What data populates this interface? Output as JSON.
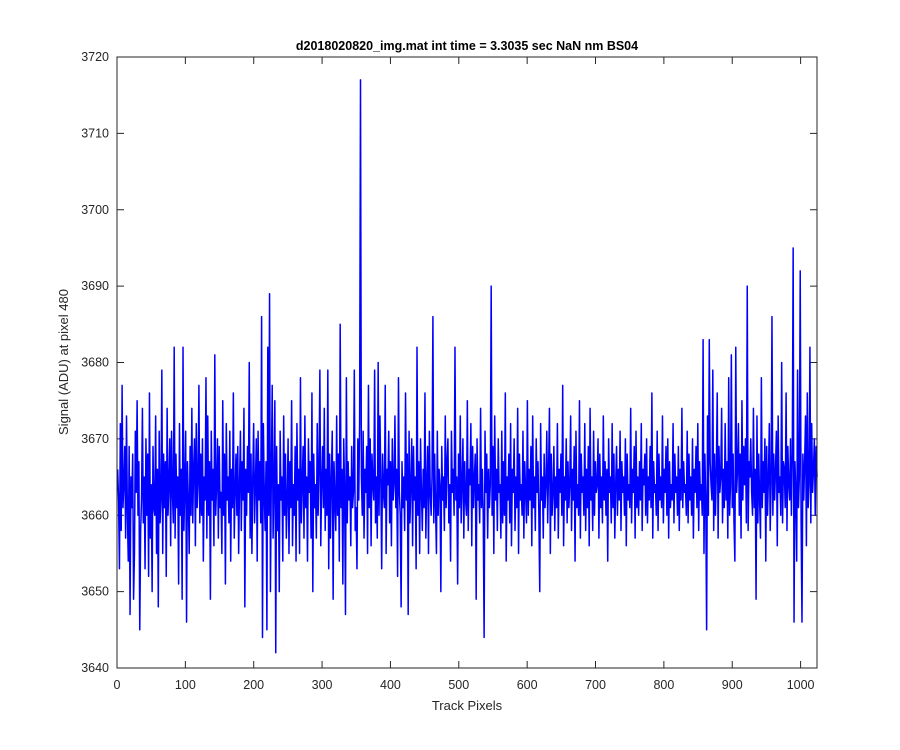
{
  "chart_data": {
    "type": "line",
    "title": "d2018020820_img.mat int time = 3.3035 sec  NaN nm BS04",
    "xlabel": "Track Pixels",
    "ylabel": "Signal (ADU) at pixel 480",
    "xlim": [
      0,
      1024
    ],
    "ylim": [
      3640,
      3720
    ],
    "xticks": [
      0,
      100,
      200,
      300,
      400,
      500,
      600,
      700,
      800,
      900,
      1000
    ],
    "yticks": [
      3640,
      3650,
      3660,
      3670,
      3680,
      3690,
      3700,
      3710,
      3720
    ],
    "grid": false,
    "line_color": "#0000ff",
    "series": [
      {
        "x_start": 1,
        "x_step": 1,
        "values": [
          3666,
          3662,
          3653,
          3672,
          3658,
          3677,
          3661,
          3664,
          3669,
          3657,
          3673,
          3660,
          3654,
          3669,
          3647,
          3665,
          3661,
          3668,
          3649,
          3655,
          3671,
          3663,
          3675,
          3660,
          3667,
          3645,
          3658,
          3662,
          3674,
          3659,
          3665,
          3653,
          3670,
          3660,
          3668,
          3652,
          3676,
          3657,
          3664,
          3650,
          3669,
          3661,
          3660,
          3673,
          3655,
          3666,
          3648,
          3671,
          3659,
          3662,
          3679,
          3655,
          3668,
          3661,
          3667,
          3652,
          3674,
          3660,
          3664,
          3670,
          3656,
          3671,
          3663,
          3659,
          3682,
          3657,
          3668,
          3661,
          3665,
          3651,
          3672,
          3660,
          3666,
          3649,
          3682,
          3658,
          3664,
          3671,
          3646,
          3667,
          3662,
          3655,
          3669,
          3660,
          3674,
          3659,
          3666,
          3670,
          3656,
          3672,
          3661,
          3664,
          3677,
          3659,
          3668,
          3660,
          3670,
          3654,
          3665,
          3662,
          3678,
          3657,
          3673,
          3660,
          3667,
          3649,
          3671,
          3662,
          3666,
          3656,
          3681,
          3660,
          3664,
          3670,
          3657,
          3669,
          3661,
          3663,
          3655,
          3675,
          3660,
          3668,
          3651,
          3672,
          3662,
          3665,
          3659,
          3671,
          3654,
          3666,
          3661,
          3676,
          3657,
          3663,
          3668,
          3660,
          3669,
          3655,
          3664,
          3671,
          3658,
          3667,
          3662,
          3674,
          3648,
          3666,
          3660,
          3669,
          3663,
          3680,
          3657,
          3668,
          3655,
          3665,
          3672,
          3659,
          3664,
          3670,
          3654,
          3671,
          3662,
          3667,
          3659,
          3686,
          3644,
          3672,
          3663,
          3658,
          3667,
          3645,
          3682,
          3660,
          3689,
          3650,
          3665,
          3677,
          3657,
          3664,
          3675,
          3642,
          3669,
          3658,
          3664,
          3650,
          3671,
          3662,
          3665,
          3654,
          3673,
          3660,
          3668,
          3657,
          3662,
          3670,
          3655,
          3667,
          3661,
          3675,
          3656,
          3664,
          3660,
          3669,
          3654,
          3672,
          3662,
          3666,
          3655,
          3678,
          3659,
          3664,
          3669,
          3657,
          3673,
          3661,
          3665,
          3654,
          3670,
          3663,
          3667,
          3657,
          3676,
          3650,
          3668,
          3661,
          3664,
          3657,
          3672,
          3660,
          3666,
          3679,
          3656,
          3664,
          3669,
          3661,
          3674,
          3658,
          3666,
          3660,
          3679,
          3653,
          3668,
          3657,
          3665,
          3671,
          3649,
          3667,
          3662,
          3658,
          3673,
          3660,
          3668,
          3654,
          3685,
          3661,
          3666,
          3651,
          3670,
          3663,
          3647,
          3678,
          3659,
          3667,
          3662,
          3665,
          3656,
          3669,
          3661,
          3663,
          3679,
          3658,
          3661,
          3653,
          3670,
          3662,
          3672,
          3717,
          3665,
          3660,
          3671,
          3657,
          3666,
          3663,
          3669,
          3655,
          3677,
          3661,
          3670,
          3656,
          3668,
          3664,
          3662,
          3679,
          3659,
          3665,
          3657,
          3680,
          3660,
          3673,
          3665,
          3653,
          3668,
          3663,
          3661,
          3677,
          3655,
          3666,
          3664,
          3671,
          3659,
          3667,
          3656,
          3670,
          3662,
          3664,
          3673,
          3661,
          3666,
          3652,
          3678,
          3663,
          3660,
          3648,
          3667,
          3661,
          3665,
          3658,
          3676,
          3662,
          3668,
          3647,
          3671,
          3659,
          3664,
          3670,
          3656,
          3669,
          3662,
          3665,
          3653,
          3682,
          3660,
          3667,
          3655,
          3670,
          3663,
          3658,
          3666,
          3661,
          3676,
          3657,
          3664,
          3669,
          3655,
          3671,
          3663,
          3660,
          3665,
          3686,
          3659,
          3668,
          3661,
          3655,
          3671,
          3660,
          3666,
          3664,
          3650,
          3669,
          3662,
          3665,
          3658,
          3673,
          3661,
          3667,
          3670,
          3659,
          3664,
          3654,
          3671,
          3663,
          3666,
          3660,
          3682,
          3662,
          3665,
          3651,
          3668,
          3661,
          3673,
          3659,
          3664,
          3670,
          3657,
          3667,
          3662,
          3660,
          3675,
          3658,
          3666,
          3664,
          3672,
          3656,
          3669,
          3661,
          3665,
          3668,
          3649,
          3670,
          3662,
          3664,
          3659,
          3674,
          3661,
          3666,
          3660,
          3644,
          3671,
          3663,
          3668,
          3657,
          3666,
          3661,
          3664,
          3690,
          3660,
          3669,
          3655,
          3673,
          3662,
          3666,
          3658,
          3670,
          3663,
          3664,
          3657,
          3671,
          3659,
          3667,
          3660,
          3676,
          3654,
          3665,
          3662,
          3668,
          3659,
          3672,
          3656,
          3666,
          3663,
          3670,
          3658,
          3665,
          3661,
          3674,
          3655,
          3668,
          3662,
          3664,
          3660,
          3671,
          3657,
          3667,
          3663,
          3659,
          3675,
          3660,
          3666,
          3662,
          3669,
          3656,
          3673,
          3661,
          3665,
          3658,
          3670,
          3663,
          3667,
          3660,
          3650,
          3672,
          3662,
          3665,
          3657,
          3668,
          3661,
          3664,
          3671,
          3659,
          3666,
          3674,
          3655,
          3668,
          3660,
          3663,
          3669,
          3658,
          3665,
          3661,
          3672,
          3657,
          3666,
          3663,
          3668,
          3660,
          3677,
          3656,
          3665,
          3662,
          3670,
          3659,
          3667,
          3661,
          3664,
          3673,
          3658,
          3666,
          3662,
          3669,
          3654,
          3671,
          3661,
          3664,
          3660,
          3675,
          3657,
          3668,
          3663,
          3665,
          3660,
          3672,
          3658,
          3666,
          3661,
          3669,
          3656,
          3674,
          3662,
          3665,
          3658,
          3671,
          3660,
          3667,
          3663,
          3664,
          3670,
          3657,
          3668,
          3661,
          3665,
          3659,
          3673,
          3662,
          3667,
          3660,
          3666,
          3654,
          3670,
          3663,
          3665,
          3659,
          3672,
          3661,
          3668,
          3657,
          3664,
          3669,
          3660,
          3666,
          3662,
          3671,
          3658,
          3667,
          3663,
          3665,
          3660,
          3670,
          3656,
          3668,
          3662,
          3664,
          3661,
          3674,
          3659,
          3666,
          3663,
          3669,
          3657,
          3671,
          3661,
          3665,
          3660,
          3667,
          3662,
          3672,
          3658,
          3666,
          3664,
          3668,
          3660,
          3670,
          3659,
          3665,
          3662,
          3669,
          3661,
          3676,
          3657,
          3667,
          3663,
          3664,
          3660,
          3671,
          3658,
          3668,
          3662,
          3665,
          3661,
          3673,
          3659,
          3666,
          3663,
          3669,
          3660,
          3670,
          3657,
          3667,
          3661,
          3664,
          3662,
          3672,
          3659,
          3668,
          3663,
          3665,
          3660,
          3669,
          3658,
          3666,
          3662,
          3674,
          3661,
          3667,
          3663,
          3664,
          3660,
          3671,
          3659,
          3668,
          3662,
          3665,
          3660,
          3670,
          3657,
          3666,
          3663,
          3669,
          3661,
          3672,
          3658,
          3667,
          3662,
          3664,
          3660,
          3683,
          3655,
          3668,
          3662,
          3645,
          3673,
          3660,
          3683,
          3667,
          3664,
          3662,
          3679,
          3658,
          3668,
          3660,
          3666,
          3676,
          3657,
          3669,
          3663,
          3665,
          3674,
          3659,
          3666,
          3661,
          3672,
          3662,
          3667,
          3657,
          3678,
          3660,
          3664,
          3681,
          3661,
          3668,
          3659,
          3654,
          3682,
          3663,
          3666,
          3672,
          3660,
          3668,
          3657,
          3675,
          3662,
          3669,
          3664,
          3670,
          3659,
          3690,
          3658,
          3667,
          3665,
          3670,
          3663,
          3660,
          3674,
          3661,
          3666,
          3649,
          3673,
          3659,
          3668,
          3662,
          3657,
          3678,
          3661,
          3667,
          3663,
          3670,
          3654,
          3669,
          3660,
          3665,
          3672,
          3658,
          3664,
          3686,
          3660,
          3668,
          3662,
          3666,
          3671,
          3656,
          3673,
          3663,
          3665,
          3660,
          3680,
          3659,
          3667,
          3666,
          3661,
          3676,
          3658,
          3669,
          3664,
          3662,
          3670,
          3660,
          3668,
          3695,
          3646,
          3667,
          3663,
          3654,
          3679,
          3661,
          3665,
          3692,
          3659,
          3646,
          3668,
          3662,
          3667,
          3673,
          3656,
          3676,
          3661,
          3664,
          3682,
          3659,
          3672,
          3663,
          3666,
          3670,
          3660,
          3669,
          3665
        ]
      }
    ]
  }
}
